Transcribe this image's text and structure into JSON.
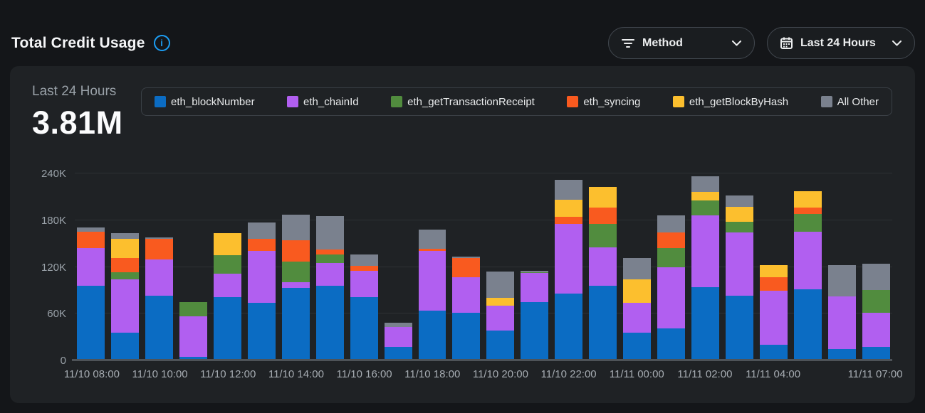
{
  "header": {
    "title": "Total Credit Usage",
    "filters": [
      {
        "label": "Method",
        "icon": "filter-icon"
      },
      {
        "label": "Last 24 Hours",
        "icon": "calendar-icon"
      }
    ]
  },
  "card": {
    "period_label": "Last 24 Hours",
    "total": "3.81M"
  },
  "colors": {
    "info_accent": "#1C9EF4",
    "card_bg": "#1F2225",
    "page_bg": "#141619"
  },
  "chart_data": {
    "type": "bar",
    "stacked": true,
    "title": "Total Credit Usage - Last 24 Hours",
    "unit": "credits",
    "ylim": [
      0,
      240000
    ],
    "yticks": [
      "0",
      "60K",
      "120K",
      "180K",
      "240K"
    ],
    "grid": true,
    "legend_position": "top",
    "categories": [
      "11/10 08:00",
      "11/10 09:00",
      "11/10 10:00",
      "11/10 11:00",
      "11/10 12:00",
      "11/10 13:00",
      "11/10 14:00",
      "11/10 15:00",
      "11/10 16:00",
      "11/10 17:00",
      "11/10 18:00",
      "11/10 19:00",
      "11/10 20:00",
      "11/10 21:00",
      "11/10 22:00",
      "11/10 23:00",
      "11/11 00:00",
      "11/11 01:00",
      "11/11 02:00",
      "11/11 03:00",
      "11/11 04:00",
      "11/11 05:00",
      "11/11 06:00",
      "11/11 07:00"
    ],
    "x_axis_labels": [
      {
        "slot": 0,
        "label": "11/10 08:00"
      },
      {
        "slot": 2,
        "label": "11/10 10:00"
      },
      {
        "slot": 4,
        "label": "11/10 12:00"
      },
      {
        "slot": 6,
        "label": "11/10 14:00"
      },
      {
        "slot": 8,
        "label": "11/10 16:00"
      },
      {
        "slot": 10,
        "label": "11/10 18:00"
      },
      {
        "slot": 12,
        "label": "11/10 20:00"
      },
      {
        "slot": 14,
        "label": "11/10 22:00"
      },
      {
        "slot": 16,
        "label": "11/11 00:00"
      },
      {
        "slot": 18,
        "label": "11/11 02:00"
      },
      {
        "slot": 20,
        "label": "11/11 04:00"
      },
      {
        "slot": 23,
        "label": "11/11 07:00"
      }
    ],
    "series": [
      {
        "name": "eth_blockNumber",
        "color": "#0B6CC3",
        "values": [
          96000,
          36000,
          83000,
          5000,
          81000,
          74000,
          93000,
          96000,
          81000,
          17000,
          64000,
          61000,
          38000,
          75000,
          86000,
          96000,
          36000,
          41000,
          94000,
          83000,
          20000,
          91000,
          15000,
          17000
        ]
      },
      {
        "name": "eth_chainId",
        "color": "#B15FF0",
        "values": [
          48000,
          68000,
          47000,
          52000,
          30000,
          67000,
          7000,
          29000,
          34000,
          26000,
          77000,
          46000,
          32000,
          37000,
          89000,
          49000,
          38000,
          79000,
          92000,
          81000,
          69000,
          74000,
          67000,
          44000
        ]
      },
      {
        "name": "eth_getTransactionReceipt",
        "color": "#518C3E",
        "values": [
          0,
          9000,
          0,
          18000,
          24000,
          0,
          27000,
          11000,
          0,
          0,
          0,
          0,
          0,
          1500,
          0,
          30000,
          0,
          24000,
          19000,
          14000,
          0,
          23000,
          0,
          29000
        ]
      },
      {
        "name": "eth_syncing",
        "color": "#F95A1F",
        "values": [
          21000,
          18000,
          26000,
          0,
          0,
          15000,
          27000,
          6000,
          6000,
          0,
          2000,
          24000,
          0,
          0,
          9000,
          21000,
          0,
          20000,
          0,
          0,
          18000,
          8000,
          0,
          0
        ]
      },
      {
        "name": "eth_getBlockByHash",
        "color": "#FCBF2E",
        "values": [
          0,
          25000,
          0,
          0,
          28000,
          0,
          0,
          0,
          0,
          0,
          0,
          0,
          10000,
          0,
          22000,
          27000,
          30000,
          0,
          11000,
          19000,
          15000,
          21000,
          0,
          0
        ]
      },
      {
        "name": "All Other",
        "color": "#7A818E",
        "values": [
          6000,
          7000,
          2000,
          0,
          0,
          21000,
          33000,
          43000,
          15000,
          5000,
          25000,
          2000,
          34000,
          1500,
          26000,
          0,
          27000,
          22000,
          20000,
          15000,
          0,
          0,
          40000,
          34000
        ]
      }
    ]
  }
}
